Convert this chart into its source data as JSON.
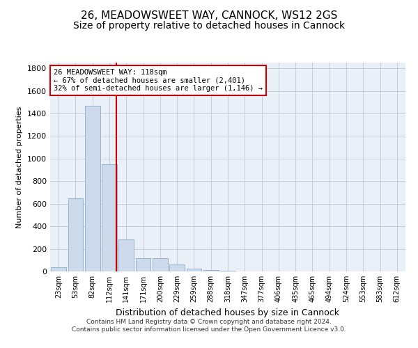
{
  "title1": "26, MEADOWSWEET WAY, CANNOCK, WS12 2GS",
  "title2": "Size of property relative to detached houses in Cannock",
  "xlabel": "Distribution of detached houses by size in Cannock",
  "ylabel": "Number of detached properties",
  "categories": [
    "23sqm",
    "53sqm",
    "82sqm",
    "112sqm",
    "141sqm",
    "171sqm",
    "200sqm",
    "229sqm",
    "259sqm",
    "288sqm",
    "318sqm",
    "347sqm",
    "377sqm",
    "406sqm",
    "435sqm",
    "465sqm",
    "494sqm",
    "524sqm",
    "553sqm",
    "583sqm",
    "612sqm"
  ],
  "values": [
    40,
    650,
    1470,
    950,
    285,
    120,
    120,
    60,
    25,
    10,
    5,
    3,
    2,
    1,
    0,
    0,
    0,
    0,
    0,
    0,
    0
  ],
  "bar_color": "#ccdaeb",
  "bar_edge_color": "#8aaac8",
  "vline_x": 3.42,
  "vline_color": "#cc0000",
  "annotation_text": "26 MEADOWSWEET WAY: 118sqm\n← 67% of detached houses are smaller (2,401)\n32% of semi-detached houses are larger (1,146) →",
  "annotation_box_color": "#ffffff",
  "annotation_box_edge": "#cc0000",
  "ylim": [
    0,
    1850
  ],
  "yticks": [
    0,
    200,
    400,
    600,
    800,
    1000,
    1200,
    1400,
    1600,
    1800
  ],
  "footer1": "Contains HM Land Registry data © Crown copyright and database right 2024.",
  "footer2": "Contains public sector information licensed under the Open Government Licence v3.0.",
  "bg_color": "#eaf0f8",
  "title1_fontsize": 11,
  "title2_fontsize": 10
}
